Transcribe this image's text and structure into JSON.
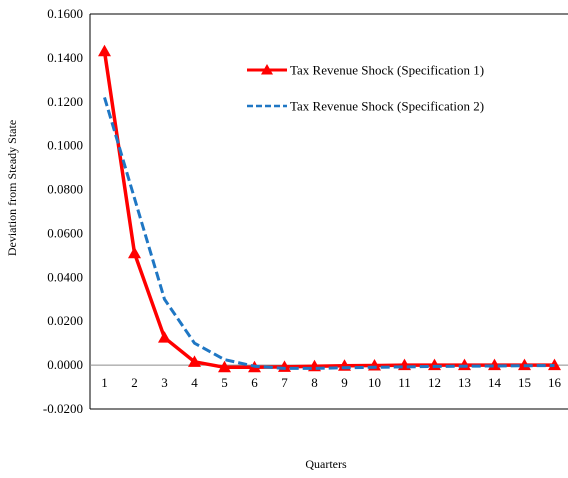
{
  "chart_data": {
    "type": "line",
    "xlabel": "Quarters",
    "ylabel": "Deviation from Steady State",
    "ylim": [
      -0.02,
      0.16
    ],
    "yticks": [
      "-0.0200",
      "0.0000",
      "0.0200",
      "0.0400",
      "0.0600",
      "0.0800",
      "0.1000",
      "0.1200",
      "0.1400",
      "0.1600"
    ],
    "yticks_values": [
      -0.02,
      0.0,
      0.02,
      0.04,
      0.06,
      0.08,
      0.1,
      0.12,
      0.14,
      0.16
    ],
    "categories": [
      "1",
      "2",
      "3",
      "4",
      "5",
      "6",
      "7",
      "8",
      "9",
      "10",
      "11",
      "12",
      "13",
      "14",
      "15",
      "16"
    ],
    "legend_position": "top-right",
    "grid": false,
    "series": [
      {
        "name": "Tax Revenue Shock (Specification 1)",
        "color": "#ff0000",
        "style": "solid",
        "marker": "triangle",
        "values": [
          0.143,
          0.051,
          0.0125,
          0.0015,
          -0.001,
          -0.001,
          -0.0008,
          -0.0005,
          -0.0003,
          -0.0002,
          0.0,
          0.0,
          0.0,
          0.0,
          0.0,
          0.0
        ]
      },
      {
        "name": "Tax Revenue Shock (Specification 2)",
        "color": "#1f77c4",
        "style": "dashed",
        "marker": "none",
        "values": [
          0.122,
          0.076,
          0.03,
          0.01,
          0.0025,
          -0.0005,
          -0.0015,
          -0.0015,
          -0.0012,
          -0.001,
          -0.0008,
          -0.0006,
          -0.0005,
          -0.0004,
          -0.0003,
          -0.0002
        ]
      }
    ]
  }
}
